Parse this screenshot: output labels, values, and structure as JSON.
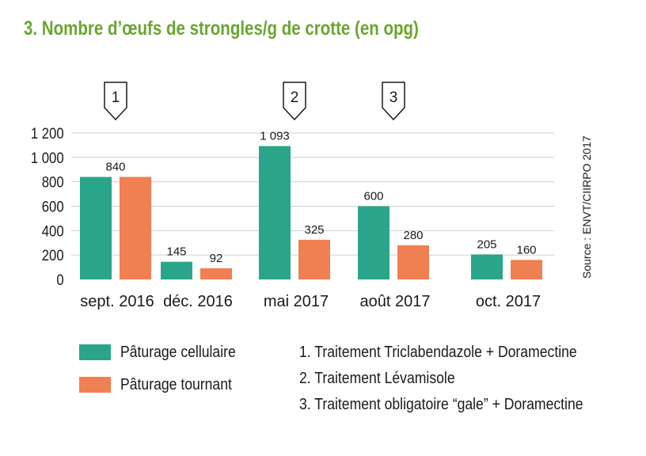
{
  "title": "3. Nombre d’œufs de strongles/g de crotte (en opg)",
  "colors": {
    "title": "#6aa52f",
    "series_1": "#2aa589",
    "series_2": "#f07f52",
    "text": "#1a1a1a",
    "grid": "#cfcfcf"
  },
  "source": "Source : ENVT/CIIRPO 2017",
  "legend": [
    {
      "label": "Pâturage cellulaire",
      "color": "#2aa589"
    },
    {
      "label": "Pâturage tournant",
      "color": "#f07f52"
    }
  ],
  "notes": [
    "1. Traitement Triclabendazole + Doramectine",
    "2. Traitement Lévamisole",
    "3. Traitement obligatoire “gale” + Doramectine"
  ],
  "chart_data": {
    "type": "bar",
    "categories": [
      "sept. 2016",
      "déc. 2016",
      "mai 2017",
      "août 2017",
      "oct. 2017"
    ],
    "series": [
      {
        "name": "Pâturage cellulaire",
        "values": [
          840,
          145,
          1093,
          600,
          205
        ],
        "labels": [
          "",
          "145",
          "1 093",
          "600",
          "205"
        ]
      },
      {
        "name": "Pâturage tournant",
        "values": [
          840,
          92,
          325,
          280,
          160
        ],
        "labels": [
          "",
          "92",
          "325",
          "280",
          "160"
        ]
      }
    ],
    "category_labels": [
      "840",
      "",
      "",
      "",
      ""
    ],
    "ylim": [
      0,
      1200
    ],
    "yticks": [
      0,
      200,
      400,
      600,
      800,
      1000,
      1200
    ],
    "ytick_labels": [
      "0",
      "200",
      "400",
      "600",
      "800",
      "1 000",
      "1 200"
    ],
    "markers": [
      {
        "label": "1",
        "category": 0
      },
      {
        "label": "2",
        "category": 2
      },
      {
        "label": "3",
        "category": 3
      }
    ],
    "grid": true,
    "legend_position": "bottom-left"
  }
}
